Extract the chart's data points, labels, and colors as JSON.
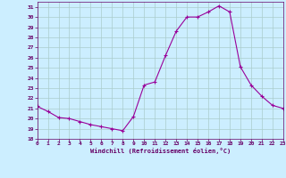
{
  "hours": [
    0,
    1,
    2,
    3,
    4,
    5,
    6,
    7,
    8,
    9,
    10,
    11,
    12,
    13,
    14,
    15,
    16,
    17,
    18,
    19,
    20,
    21,
    22,
    23
  ],
  "values": [
    21.2,
    20.7,
    20.1,
    20.0,
    19.7,
    19.4,
    19.2,
    19.0,
    18.8,
    20.2,
    23.3,
    23.6,
    26.2,
    28.6,
    30.0,
    30.0,
    30.5,
    31.1,
    30.5,
    25.1,
    23.3,
    22.2,
    21.3,
    21.0
  ],
  "ylim": [
    18,
    31.5
  ],
  "yticks": [
    18,
    19,
    20,
    21,
    22,
    23,
    24,
    25,
    26,
    27,
    28,
    29,
    30,
    31
  ],
  "xlim": [
    0,
    23
  ],
  "xticks": [
    0,
    1,
    2,
    3,
    4,
    5,
    6,
    7,
    8,
    9,
    10,
    11,
    12,
    13,
    14,
    15,
    16,
    17,
    18,
    19,
    20,
    21,
    22,
    23
  ],
  "xlabel": "Windchill (Refroidissement éolien,°C)",
  "line_color": "#990099",
  "marker": "+",
  "bg_color": "#cceeff",
  "grid_color": "#aacccc",
  "text_color": "#660066",
  "title": ""
}
